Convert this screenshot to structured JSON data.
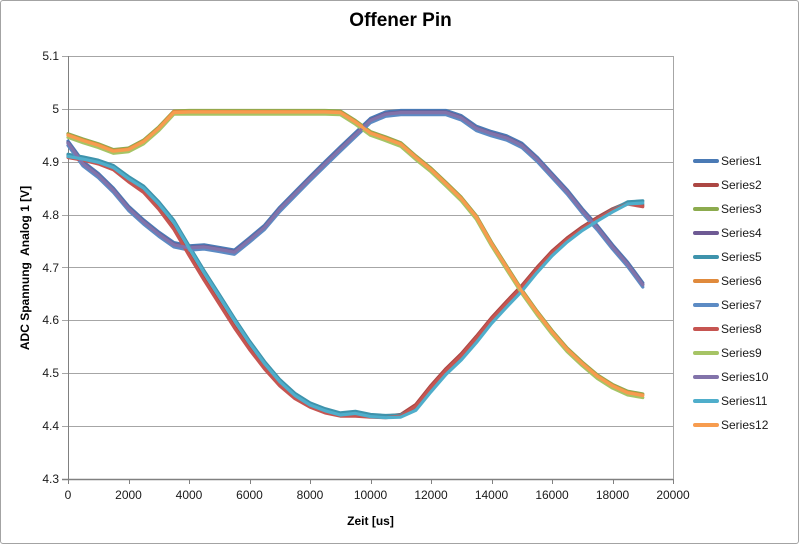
{
  "window": {
    "title": "Offener Pin"
  },
  "colors": {
    "gridline": "#A6A6A6",
    "axis": "#808080",
    "plot_border": "#A6A6A6",
    "outer_border": "#A3A3A3",
    "background": "#FFFFFF"
  },
  "chart_data": {
    "type": "line",
    "title": "Offener Pin",
    "xlabel": "Zeit [us]",
    "ylabel": "ADC Spannung  Analog 1 [V]",
    "xlim": [
      0,
      20000
    ],
    "ylim": [
      4.3,
      5.1
    ],
    "grid": "horizontal",
    "legend_position": "right",
    "x_ticks": [
      0,
      2000,
      4000,
      6000,
      8000,
      10000,
      12000,
      14000,
      16000,
      18000,
      20000
    ],
    "x_tick_labels": [
      "0",
      "2000",
      "4000",
      "6000",
      "8000",
      "10000",
      "12000",
      "14000",
      "16000",
      "18000",
      "20000"
    ],
    "y_tick_labels": [
      "5.1",
      "5",
      "4.9",
      "4.8",
      "4.7",
      "4.6",
      "4.5",
      "4.4",
      "4.3"
    ],
    "x": [
      0,
      500,
      1000,
      1500,
      2000,
      2500,
      3000,
      3500,
      4000,
      4500,
      5000,
      5500,
      6000,
      6500,
      7000,
      7500,
      8000,
      8500,
      9000,
      9500,
      10000,
      10500,
      11000,
      11500,
      12000,
      12500,
      13000,
      13500,
      14000,
      14500,
      15000,
      15500,
      16000,
      16500,
      17000,
      17500,
      18000,
      18500,
      19000
    ],
    "series": [
      {
        "name": "Series1",
        "color": "#4A7AB5",
        "values": [
          4.939,
          4.9,
          4.878,
          4.85,
          4.816,
          4.79,
          4.767,
          4.747,
          4.741,
          4.743,
          4.738,
          4.733,
          4.756,
          4.78,
          4.814,
          4.843,
          4.872,
          4.9,
          4.928,
          4.955,
          4.982,
          4.994,
          4.997,
          4.997,
          4.997,
          4.997,
          4.987,
          4.967,
          4.957,
          4.949,
          4.935,
          4.909,
          4.878,
          4.847,
          4.811,
          4.779,
          4.743,
          4.71,
          4.671
        ]
      },
      {
        "name": "Series2",
        "color": "#AC4743",
        "values": [
          4.911,
          4.906,
          4.899,
          4.888,
          4.865,
          4.845,
          4.813,
          4.775,
          4.726,
          4.679,
          4.634,
          4.589,
          4.548,
          4.511,
          4.479,
          4.455,
          4.439,
          4.428,
          4.422,
          4.422,
          4.42,
          4.419,
          4.422,
          4.441,
          4.477,
          4.509,
          4.537,
          4.57,
          4.605,
          4.636,
          4.666,
          4.7,
          4.731,
          4.756,
          4.777,
          4.795,
          4.811,
          4.823,
          4.818
        ]
      },
      {
        "name": "Series3",
        "color": "#8CAB4E",
        "values": [
          4.953,
          4.943,
          4.934,
          4.923,
          4.926,
          4.941,
          4.966,
          4.996,
          4.997,
          4.997,
          4.997,
          4.997,
          4.997,
          4.997,
          4.997,
          4.997,
          4.997,
          4.997,
          4.996,
          4.978,
          4.957,
          4.947,
          4.936,
          4.911,
          4.888,
          4.861,
          4.833,
          4.798,
          4.748,
          4.703,
          4.658,
          4.618,
          4.581,
          4.548,
          4.521,
          4.497,
          4.479,
          4.466,
          4.461
        ]
      },
      {
        "name": "Series4",
        "color": "#6E5A94",
        "values": [
          4.936,
          4.897,
          4.875,
          4.847,
          4.813,
          4.787,
          4.764,
          4.744,
          4.738,
          4.74,
          4.735,
          4.73,
          4.753,
          4.777,
          4.811,
          4.84,
          4.869,
          4.897,
          4.925,
          4.952,
          4.979,
          4.991,
          4.994,
          4.994,
          4.994,
          4.994,
          4.984,
          4.964,
          4.954,
          4.946,
          4.932,
          4.906,
          4.875,
          4.844,
          4.808,
          4.776,
          4.74,
          4.707,
          4.668
        ]
      },
      {
        "name": "Series5",
        "color": "#3E93AC",
        "values": [
          4.914,
          4.909,
          4.903,
          4.893,
          4.872,
          4.854,
          4.824,
          4.789,
          4.741,
          4.694,
          4.649,
          4.604,
          4.561,
          4.522,
          4.488,
          4.462,
          4.444,
          4.433,
          4.425,
          4.428,
          4.422,
          4.42,
          4.421,
          4.434,
          4.469,
          4.502,
          4.529,
          4.562,
          4.598,
          4.629,
          4.659,
          4.694,
          4.726,
          4.752,
          4.774,
          4.792,
          4.809,
          4.824,
          4.826
        ]
      },
      {
        "name": "Series6",
        "color": "#E08A3C",
        "values": [
          4.951,
          4.941,
          4.932,
          4.921,
          4.924,
          4.939,
          4.964,
          4.995,
          4.995,
          4.995,
          4.995,
          4.995,
          4.995,
          4.995,
          4.995,
          4.995,
          4.995,
          4.995,
          4.994,
          4.976,
          4.955,
          4.945,
          4.934,
          4.909,
          4.886,
          4.859,
          4.831,
          4.796,
          4.746,
          4.701,
          4.656,
          4.616,
          4.579,
          4.546,
          4.519,
          4.495,
          4.477,
          4.464,
          4.459
        ]
      },
      {
        "name": "Series7",
        "color": "#5C8BC4",
        "values": [
          4.931,
          4.892,
          4.87,
          4.842,
          4.808,
          4.782,
          4.759,
          4.739,
          4.733,
          4.735,
          4.73,
          4.725,
          4.748,
          4.772,
          4.806,
          4.835,
          4.864,
          4.892,
          4.92,
          4.947,
          4.974,
          4.986,
          4.989,
          4.989,
          4.989,
          4.989,
          4.979,
          4.959,
          4.949,
          4.941,
          4.927,
          4.901,
          4.87,
          4.839,
          4.803,
          4.771,
          4.735,
          4.702,
          4.663
        ]
      },
      {
        "name": "Series8",
        "color": "#C65551",
        "values": [
          4.908,
          4.903,
          4.896,
          4.885,
          4.862,
          4.842,
          4.81,
          4.772,
          4.723,
          4.676,
          4.631,
          4.586,
          4.545,
          4.508,
          4.476,
          4.452,
          4.436,
          4.425,
          4.419,
          4.419,
          4.417,
          4.416,
          4.419,
          4.438,
          4.474,
          4.506,
          4.534,
          4.567,
          4.602,
          4.633,
          4.663,
          4.697,
          4.728,
          4.753,
          4.774,
          4.792,
          4.808,
          4.82,
          4.815
        ]
      },
      {
        "name": "Series9",
        "color": "#A6C465",
        "values": [
          4.946,
          4.936,
          4.927,
          4.916,
          4.919,
          4.934,
          4.959,
          4.99,
          4.99,
          4.99,
          4.99,
          4.99,
          4.99,
          4.99,
          4.99,
          4.99,
          4.99,
          4.99,
          4.989,
          4.971,
          4.95,
          4.94,
          4.929,
          4.904,
          4.881,
          4.854,
          4.826,
          4.791,
          4.741,
          4.696,
          4.651,
          4.611,
          4.574,
          4.541,
          4.514,
          4.49,
          4.472,
          4.459,
          4.454
        ]
      },
      {
        "name": "Series10",
        "color": "#8273AA",
        "values": [
          4.935,
          4.896,
          4.874,
          4.846,
          4.812,
          4.786,
          4.763,
          4.743,
          4.737,
          4.739,
          4.734,
          4.729,
          4.752,
          4.776,
          4.81,
          4.839,
          4.868,
          4.896,
          4.924,
          4.951,
          4.978,
          4.99,
          4.993,
          4.993,
          4.993,
          4.993,
          4.983,
          4.963,
          4.953,
          4.945,
          4.931,
          4.905,
          4.874,
          4.843,
          4.807,
          4.775,
          4.739,
          4.706,
          4.667
        ]
      },
      {
        "name": "Series11",
        "color": "#4FAECB",
        "values": [
          4.91,
          4.905,
          4.899,
          4.889,
          4.868,
          4.85,
          4.82,
          4.785,
          4.737,
          4.69,
          4.645,
          4.6,
          4.557,
          4.518,
          4.484,
          4.458,
          4.44,
          4.429,
          4.421,
          4.424,
          4.418,
          4.416,
          4.417,
          4.43,
          4.465,
          4.498,
          4.525,
          4.558,
          4.594,
          4.625,
          4.655,
          4.69,
          4.722,
          4.748,
          4.77,
          4.788,
          4.805,
          4.82,
          4.822
        ]
      },
      {
        "name": "Series12",
        "color": "#F79C4F",
        "values": [
          4.95,
          4.94,
          4.931,
          4.92,
          4.923,
          4.938,
          4.963,
          4.993,
          4.994,
          4.994,
          4.994,
          4.994,
          4.994,
          4.994,
          4.994,
          4.994,
          4.994,
          4.994,
          4.993,
          4.975,
          4.954,
          4.944,
          4.933,
          4.908,
          4.885,
          4.858,
          4.83,
          4.795,
          4.745,
          4.7,
          4.655,
          4.615,
          4.578,
          4.545,
          4.518,
          4.494,
          4.476,
          4.463,
          4.458
        ]
      }
    ]
  }
}
